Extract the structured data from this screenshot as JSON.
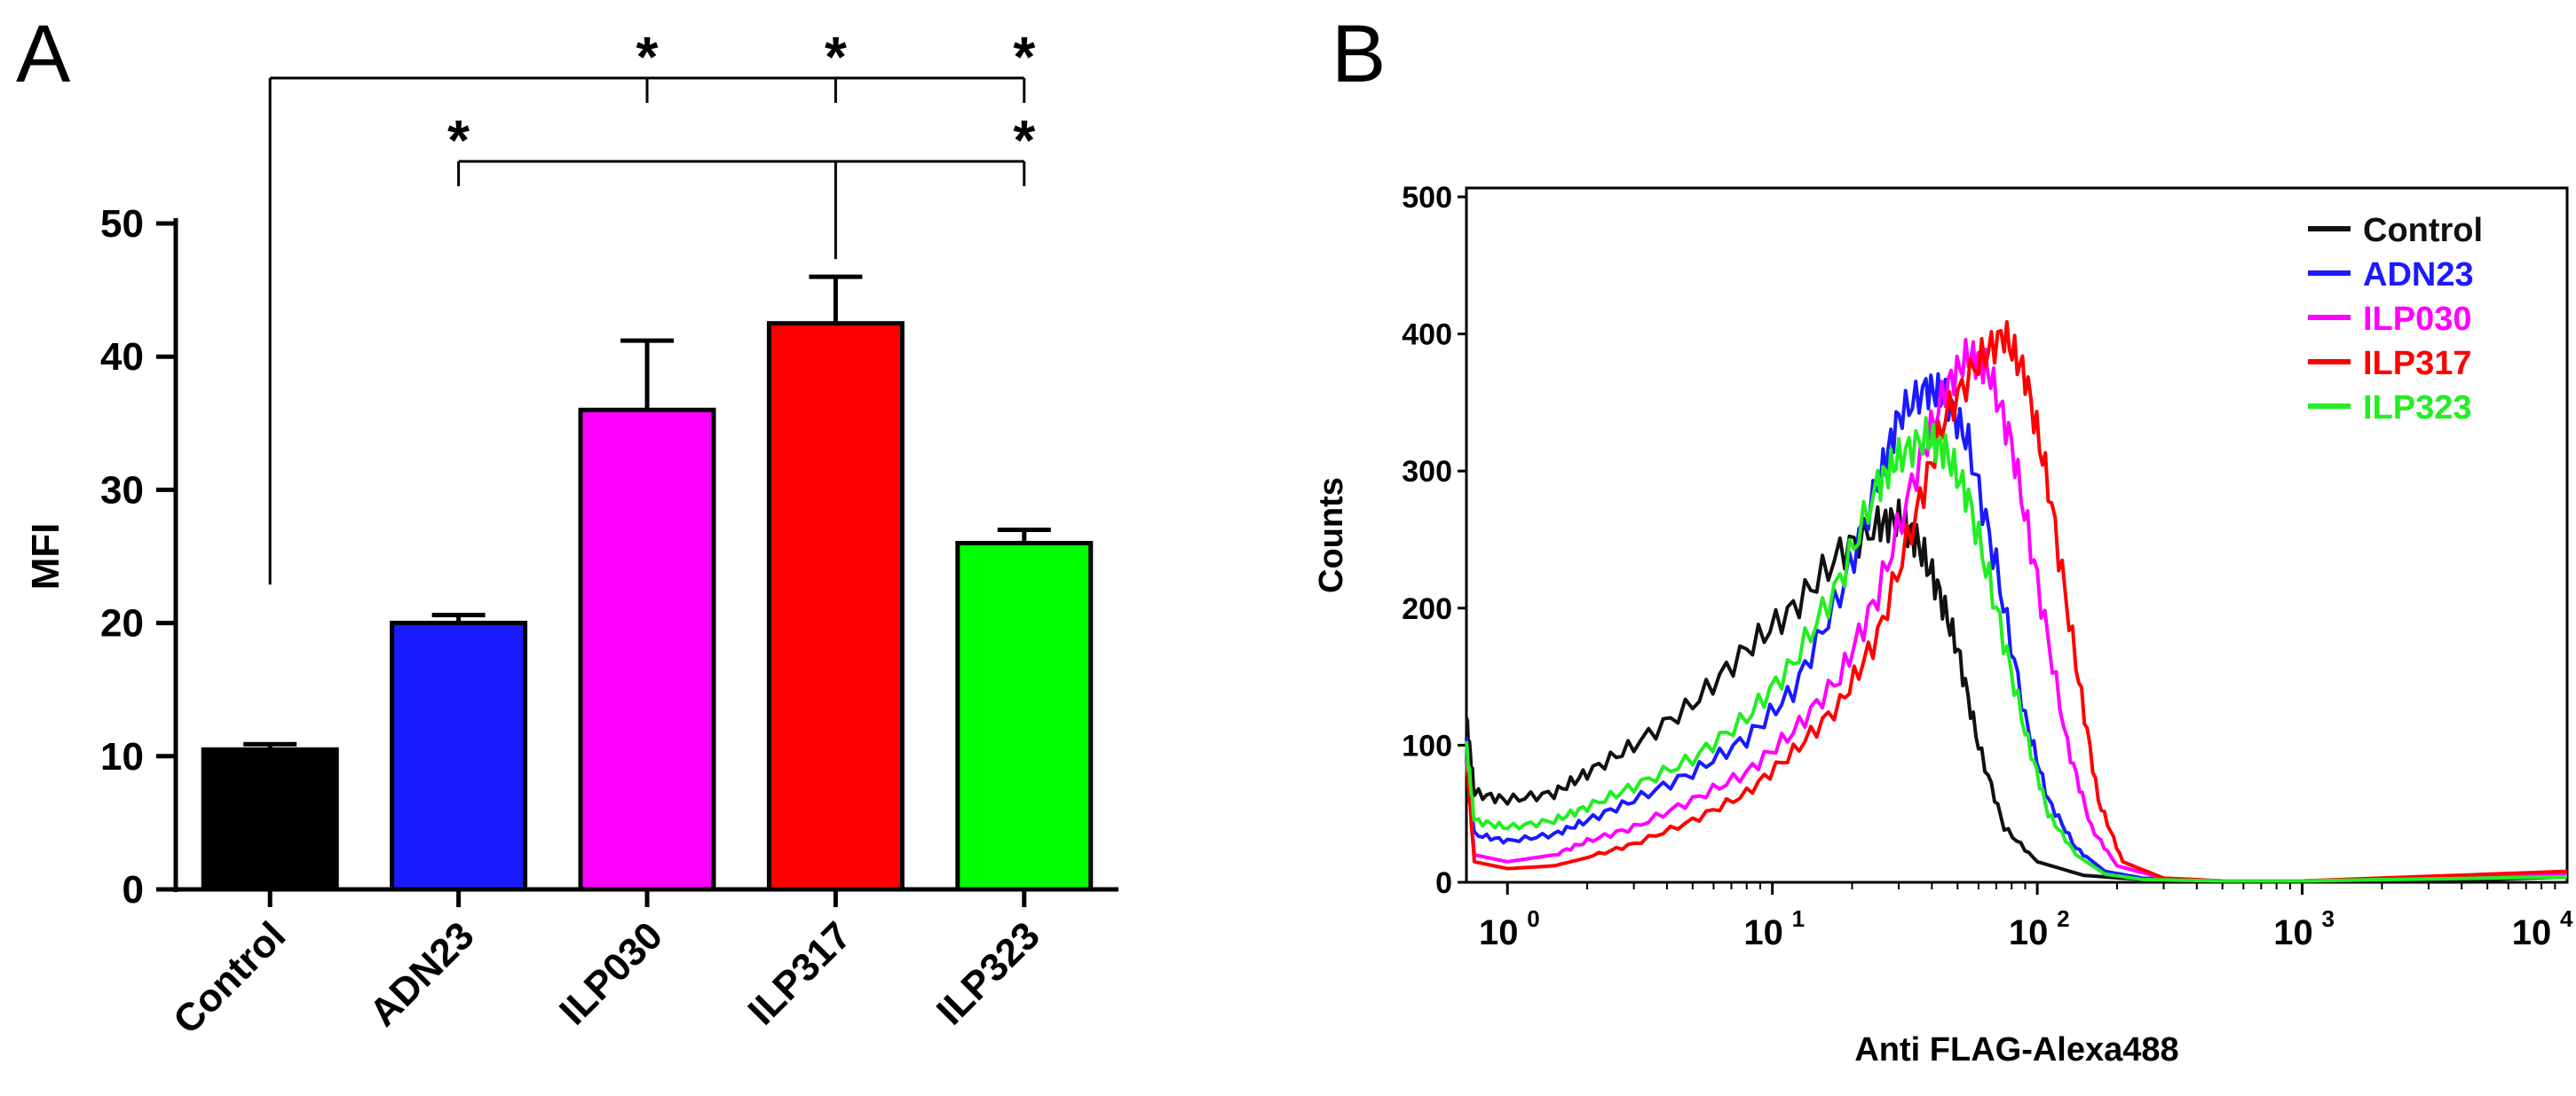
{
  "chart_data": [
    {
      "panel": "A",
      "type": "bar",
      "ylabel": "MFI",
      "xlabel": "",
      "ylim": [
        0,
        50
      ],
      "yticks": [
        "0",
        "10",
        "20",
        "30",
        "40",
        "50"
      ],
      "categories": [
        "Control",
        "ADN23",
        "ILP030",
        "ILP317",
        "ILP323"
      ],
      "values": [
        10.5,
        20,
        36,
        42.5,
        26
      ],
      "errors": [
        0.4,
        0.6,
        5.2,
        3.5,
        1.0
      ],
      "colors": [
        "#000000",
        "#1a1aff",
        "#ff00ff",
        "#ff0000",
        "#00ff00"
      ],
      "significance_marker": "*",
      "significance": [
        {
          "from": "Control",
          "to": [
            "ILP030",
            "ILP317",
            "ILP323"
          ]
        },
        {
          "from": "ILP317",
          "to": [
            "ADN23",
            "ILP323"
          ]
        }
      ]
    },
    {
      "panel": "B",
      "type": "line",
      "xscale": "log",
      "xlabel": "Anti FLAG-Alexa488",
      "ylabel": "Counts",
      "xlim": [
        0.7,
        10000
      ],
      "ylim": [
        0,
        500
      ],
      "yticks": [
        "0",
        "100",
        "200",
        "300",
        "400",
        "500"
      ],
      "xticks": [
        {
          "base": "10",
          "exp": "0"
        },
        {
          "base": "10",
          "exp": "1"
        },
        {
          "base": "10",
          "exp": "2"
        },
        {
          "base": "10",
          "exp": "3"
        },
        {
          "base": "10",
          "exp": "4"
        }
      ],
      "series": [
        {
          "name": "Control",
          "color": "#111111",
          "x": [
            0.7,
            0.75,
            1,
            1.5,
            2,
            3,
            5,
            8,
            12,
            18,
            25,
            30,
            35,
            42,
            50,
            60,
            75,
            100,
            150,
            250,
            500,
            1000,
            5000,
            10000
          ],
          "y": [
            120,
            65,
            60,
            65,
            80,
            100,
            130,
            170,
            200,
            240,
            260,
            265,
            250,
            215,
            170,
            100,
            40,
            15,
            5,
            2,
            1,
            1,
            2,
            4
          ]
        },
        {
          "name": "ADN23",
          "color": "#1a1aff",
          "x": [
            0.7,
            0.75,
            1,
            1.5,
            2,
            3,
            5,
            8,
            12,
            18,
            25,
            30,
            38,
            45,
            55,
            70,
            90,
            110,
            140,
            180,
            250,
            500,
            1000,
            10000
          ],
          "y": [
            100,
            35,
            30,
            35,
            45,
            60,
            80,
            105,
            140,
            210,
            290,
            340,
            360,
            355,
            320,
            230,
            120,
            60,
            25,
            8,
            3,
            1,
            1,
            5
          ]
        },
        {
          "name": "ILP030",
          "color": "#ff00ff",
          "x": [
            0.7,
            0.75,
            1,
            1.5,
            2,
            3,
            5,
            8,
            12,
            18,
            25,
            35,
            45,
            55,
            65,
            80,
            100,
            130,
            160,
            200,
            300,
            500,
            1000,
            10000
          ],
          "y": [
            90,
            20,
            15,
            20,
            30,
            40,
            60,
            80,
            110,
            150,
            210,
            300,
            360,
            385,
            375,
            320,
            220,
            100,
            40,
            12,
            3,
            1,
            1,
            6
          ]
        },
        {
          "name": "ILP317",
          "color": "#ff0000",
          "x": [
            0.7,
            0.75,
            1,
            1.5,
            2,
            3,
            5,
            8,
            12,
            18,
            25,
            35,
            45,
            60,
            75,
            90,
            110,
            140,
            170,
            210,
            300,
            500,
            1000,
            10000
          ],
          "y": [
            90,
            15,
            10,
            12,
            18,
            28,
            45,
            65,
            95,
            130,
            180,
            270,
            340,
            380,
            400,
            370,
            290,
            160,
            60,
            15,
            3,
            1,
            1,
            8
          ]
        },
        {
          "name": "ILP323",
          "color": "#22ee22",
          "x": [
            0.7,
            0.75,
            1,
            1.5,
            2,
            3,
            5,
            8,
            12,
            18,
            25,
            30,
            38,
            45,
            55,
            70,
            90,
            110,
            140,
            180,
            250,
            500,
            1000,
            10000
          ],
          "y": [
            100,
            45,
            40,
            45,
            55,
            70,
            90,
            120,
            160,
            220,
            290,
            310,
            325,
            315,
            280,
            200,
            110,
            50,
            20,
            6,
            2,
            1,
            1,
            4
          ]
        }
      ]
    }
  ],
  "panels": {
    "a_label": "A",
    "b_label": "B"
  }
}
